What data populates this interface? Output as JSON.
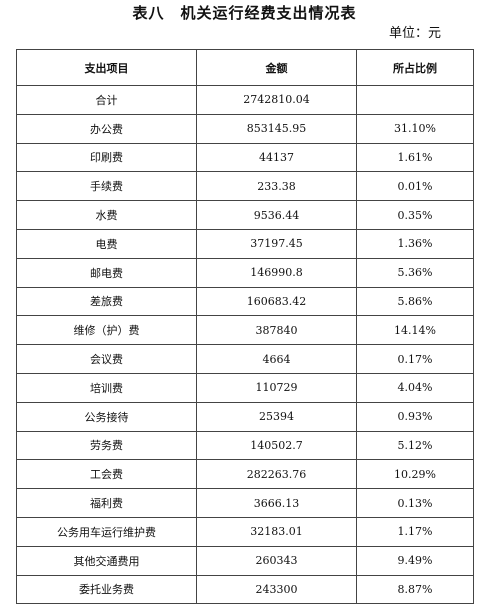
{
  "title": "表八　机关运行经费支出情况表",
  "unit": "单位：元",
  "table": {
    "headers": [
      "支出项目",
      "金额",
      "所占比例"
    ],
    "rows": [
      [
        "合计",
        "2742810.04",
        ""
      ],
      [
        "办公费",
        "853145.95",
        "31.10%"
      ],
      [
        "印刷费",
        "44137",
        "1.61%"
      ],
      [
        "手续费",
        "233.38",
        "0.01%"
      ],
      [
        "水费",
        "9536.44",
        "0.35%"
      ],
      [
        "电费",
        "37197.45",
        "1.36%"
      ],
      [
        "邮电费",
        "146990.8",
        "5.36%"
      ],
      [
        "差旅费",
        "160683.42",
        "5.86%"
      ],
      [
        "维修（护）费",
        "387840",
        "14.14%"
      ],
      [
        "会议费",
        "4664",
        "0.17%"
      ],
      [
        "培训费",
        "110729",
        "4.04%"
      ],
      [
        "公务接待",
        "25394",
        "0.93%"
      ],
      [
        "劳务费",
        "140502.7",
        "5.12%"
      ],
      [
        "工会费",
        "282263.76",
        "10.29%"
      ],
      [
        "福利费",
        "3666.13",
        "0.13%"
      ],
      [
        "公务用车运行维护费",
        "32183.01",
        "1.17%"
      ],
      [
        "其他交通费用",
        "260343",
        "9.49%"
      ],
      [
        "委托业务费",
        "243300",
        "8.87%"
      ]
    ]
  }
}
